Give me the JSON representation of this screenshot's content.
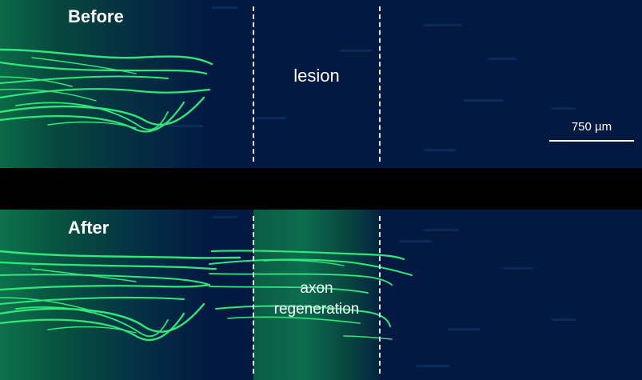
{
  "panels": {
    "before": {
      "title": "Before",
      "lesion_label": "lesion"
    },
    "after": {
      "title": "After",
      "regeneration_label_line1": "axon",
      "regeneration_label_line2": "regeneration"
    }
  },
  "scale_bar": {
    "label": "750 µm"
  },
  "colors": {
    "axon": "#2ee87a",
    "background": "#021a42",
    "divider": "#000000"
  }
}
